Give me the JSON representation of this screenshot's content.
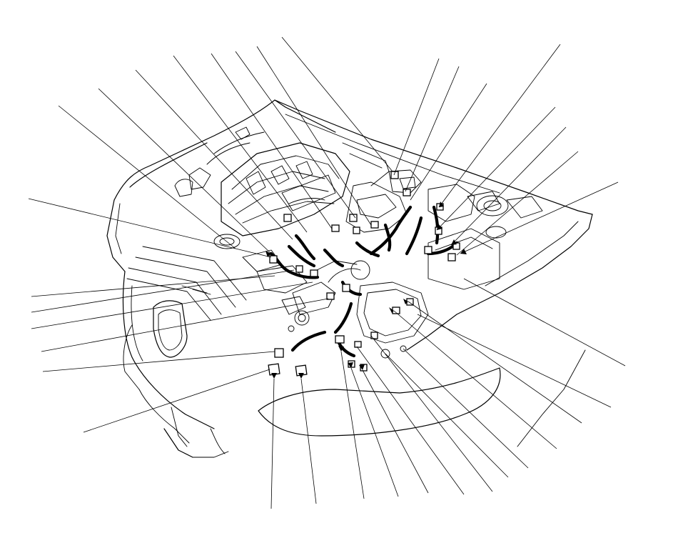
{
  "diagram": {
    "kind": "engine-compartment-harness-connector-locator",
    "label_text": "",
    "callout_count": 30,
    "harness_color": "#000000",
    "line_color": "#000000",
    "background": "#ffffff"
  }
}
